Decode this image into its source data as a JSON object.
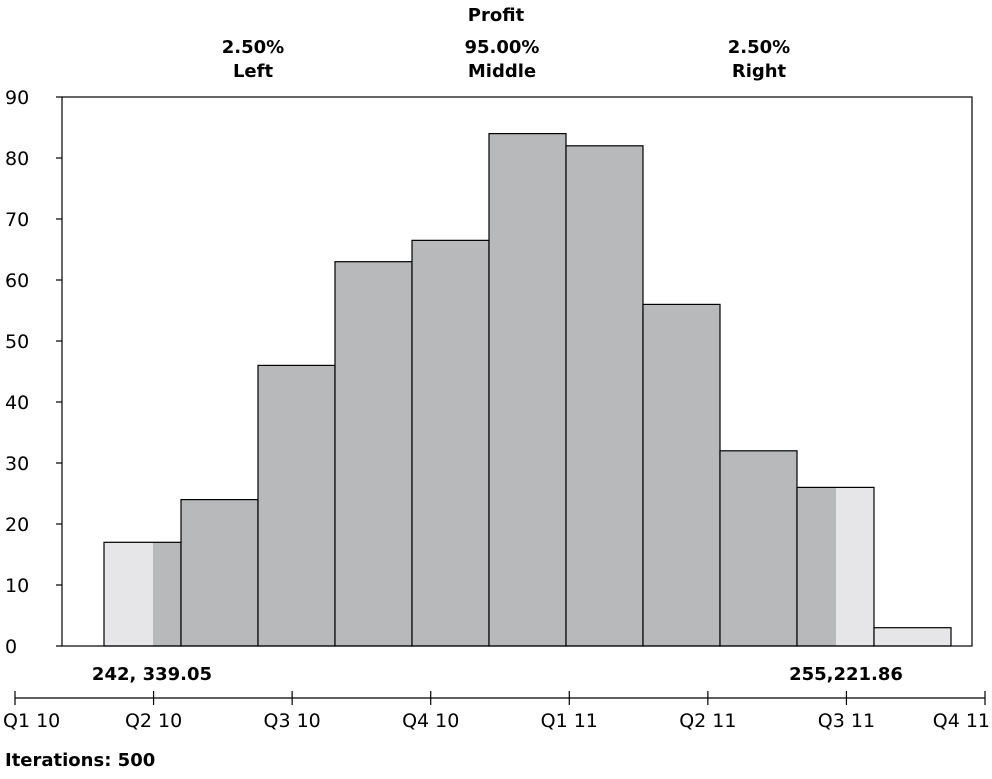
{
  "chart_data": {
    "type": "bar",
    "title": "Profit",
    "percent_labels": [
      {
        "name": "Left",
        "value": "2.50%"
      },
      {
        "name": "Middle",
        "value": "95.00%"
      },
      {
        "name": "Right",
        "value": "2.50%"
      }
    ],
    "y_ticks": [
      "0",
      "10",
      "20",
      "30",
      "40",
      "50",
      "60",
      "70",
      "80",
      "90"
    ],
    "ylim": [
      0,
      90
    ],
    "x_ticks": [
      "Q1 10",
      "Q2 10",
      "Q3 10",
      "Q4 10",
      "Q1 11",
      "Q2 11",
      "Q3 11",
      "Q4 11"
    ],
    "bins": [
      {
        "value": 17
      },
      {
        "value": 24
      },
      {
        "value": 46
      },
      {
        "value": 63
      },
      {
        "value": 66.5
      },
      {
        "value": 84
      },
      {
        "value": 82
      },
      {
        "value": 56
      },
      {
        "value": 32
      },
      {
        "value": 26
      },
      {
        "value": 3
      }
    ],
    "left_cutoff_label": "242, 339.05",
    "right_cutoff_label": "255,221.86",
    "colors": {
      "middle_fill": "#b8b9bb",
      "tail_fill": "#e6e6e8",
      "stroke": "#000000"
    },
    "iterations_label": "Iterations: 500"
  }
}
